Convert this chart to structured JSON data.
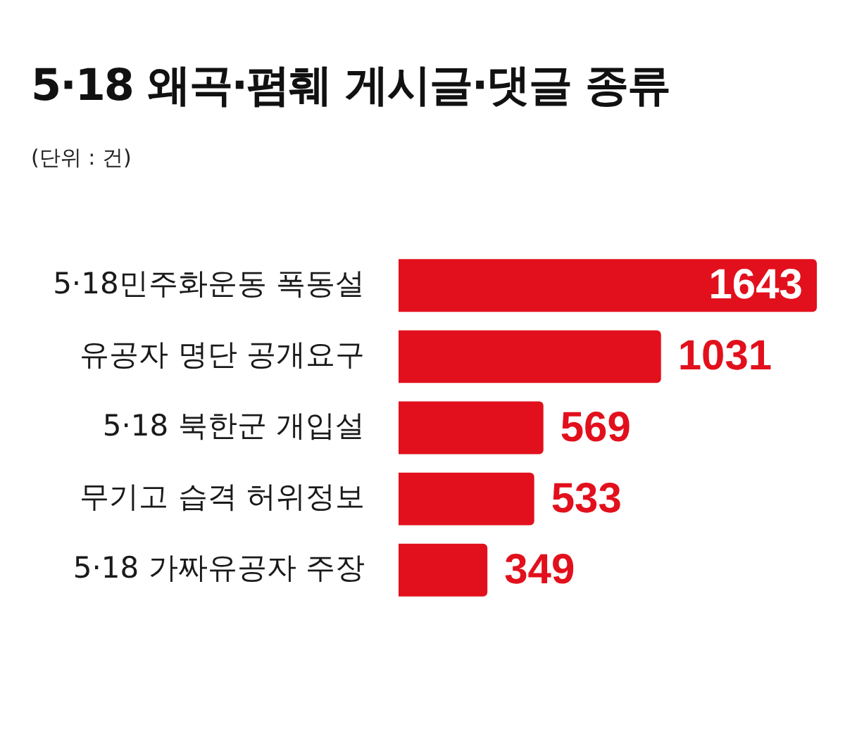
{
  "chart_data": {
    "type": "bar",
    "orientation": "horizontal",
    "title": "5·18 왜곡·폄훼 게시글·댓글 종류",
    "subtitle": "(단위 : 건)",
    "categories": [
      "5·18민주화운동 폭동설",
      "유공자 명단 공개요구",
      "5·18 북한군 개입설",
      "무기고 습격 허위정보",
      "5·18 가짜유공자 주장"
    ],
    "values": [
      1643,
      1031,
      569,
      533,
      349
    ],
    "color": "#e2101c",
    "data_labels": true,
    "grid": false,
    "legend": false,
    "tick_labels": "y"
  }
}
